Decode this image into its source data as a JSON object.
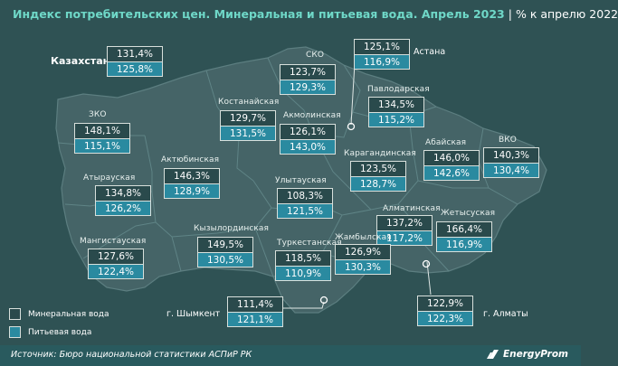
{
  "header": {
    "title": "Индекс потребительских цен. Минеральная и питьевая вода. Апрель 2023",
    "separator": "|",
    "subtitle": "% к апрелю 2022"
  },
  "country": {
    "label": "Казахстан",
    "mineral": "131,4%",
    "drinking": "125,8%"
  },
  "regions": {
    "sko": {
      "label": "СКО",
      "mineral": "123,7%",
      "drinking": "129,3%"
    },
    "astana": {
      "label": "г. Астана",
      "mineral": "125,1%",
      "drinking": "116,9%"
    },
    "pavlodar": {
      "label": "Павлодарская",
      "mineral": "134,5%",
      "drinking": "115,2%"
    },
    "zko": {
      "label": "ЗКО",
      "mineral": "148,1%",
      "drinking": "115,1%"
    },
    "kostanay": {
      "label": "Костанайская",
      "mineral": "129,7%",
      "drinking": "131,5%"
    },
    "akmola": {
      "label": "Акмолинская",
      "mineral": "126,1%",
      "drinking": "143,0%"
    },
    "aktobe": {
      "label": "Актюбинская",
      "mineral": "146,3%",
      "drinking": "128,9%"
    },
    "abay": {
      "label": "Абайская",
      "mineral": "146,0%",
      "drinking": "142,6%"
    },
    "vko": {
      "label": "ВКО",
      "mineral": "140,3%",
      "drinking": "130,4%"
    },
    "atyrau": {
      "label": "Атырауская",
      "mineral": "134,8%",
      "drinking": "126,2%"
    },
    "karaganda": {
      "label": "Карагандинская",
      "mineral": "123,5%",
      "drinking": "128,7%"
    },
    "ulytau": {
      "label": "Улытауская",
      "mineral": "108,3%",
      "drinking": "121,5%"
    },
    "almaty_obl": {
      "label": "Алматинская",
      "mineral": "137,2%",
      "drinking": "117,2%"
    },
    "zhetysu": {
      "label": "Жетысуская",
      "mineral": "166,4%",
      "drinking": "116,9%"
    },
    "mangystau": {
      "label": "Мангистауская",
      "mineral": "127,6%",
      "drinking": "122,4%"
    },
    "kyzylorda": {
      "label": "Кызылординская",
      "mineral": "149,5%",
      "drinking": "130,5%"
    },
    "turkestan": {
      "label": "Туркестанская",
      "mineral": "118,5%",
      "drinking": "110,9%"
    },
    "zhambyl": {
      "label": "Жамбылская",
      "mineral": "126,9%",
      "drinking": "130,3%"
    },
    "shymkent": {
      "label": "г. Шымкент",
      "mineral": "111,4%",
      "drinking": "121,1%"
    },
    "almaty": {
      "label": "г. Алматы",
      "mineral": "122,9%",
      "drinking": "122,3%"
    }
  },
  "legend": {
    "mineral": "Минеральная вода",
    "drinking": "Питьевая вода"
  },
  "footer": {
    "source": "Источник: Бюро национальной статистики АСПиР РК",
    "brand": "EnergyProm"
  },
  "colors": {
    "title": "#6fd8c8",
    "background": "#2f5254",
    "land": "#456467",
    "mineral_box": "#2a4a4c",
    "drinking_box": "#2a8aa0"
  }
}
